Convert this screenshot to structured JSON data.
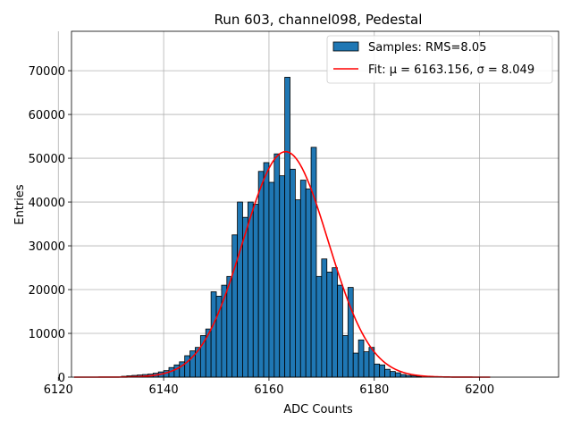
{
  "chart_data": {
    "type": "bar",
    "title": "Run 603, channel098, Pedestal",
    "xlabel": "ADC Counts",
    "ylabel": "Entries",
    "xlim": [
      6122.5,
      6215
    ],
    "ylim": [
      0,
      79000
    ],
    "xticks": [
      6120,
      6140,
      6160,
      6180,
      6200
    ],
    "yticks": [
      0,
      10000,
      20000,
      30000,
      40000,
      50000,
      60000,
      70000
    ],
    "grid": true,
    "legend_position": "top-right",
    "histogram": {
      "name": "Samples: RMS=8.05",
      "color": "#1f77b4",
      "bin_width": 1,
      "bins": [
        [
          6132,
          200
        ],
        [
          6133,
          300
        ],
        [
          6134,
          400
        ],
        [
          6135,
          500
        ],
        [
          6136,
          600
        ],
        [
          6137,
          700
        ],
        [
          6138,
          900
        ],
        [
          6139,
          1200
        ],
        [
          6140,
          1500
        ],
        [
          6141,
          2200
        ],
        [
          6142,
          2800
        ],
        [
          6143,
          3500
        ],
        [
          6144,
          4900
        ],
        [
          6145,
          6000
        ],
        [
          6146,
          6800
        ],
        [
          6147,
          9500
        ],
        [
          6148,
          11000
        ],
        [
          6149,
          19500
        ],
        [
          6150,
          18500
        ],
        [
          6151,
          21000
        ],
        [
          6152,
          23000
        ],
        [
          6153,
          32500
        ],
        [
          6154,
          40000
        ],
        [
          6155,
          36500
        ],
        [
          6156,
          40000
        ],
        [
          6157,
          39500
        ],
        [
          6158,
          47000
        ],
        [
          6159,
          49000
        ],
        [
          6160,
          44500
        ],
        [
          6161,
          51000
        ],
        [
          6162,
          46000
        ],
        [
          6163,
          68500
        ],
        [
          6164,
          47500
        ],
        [
          6165,
          40500
        ],
        [
          6166,
          45000
        ],
        [
          6167,
          43000
        ],
        [
          6168,
          52500
        ],
        [
          6169,
          23000
        ],
        [
          6170,
          27000
        ],
        [
          6171,
          24000
        ],
        [
          6172,
          25000
        ],
        [
          6173,
          21000
        ],
        [
          6174,
          9500
        ],
        [
          6175,
          20500
        ],
        [
          6176,
          5500
        ],
        [
          6177,
          8500
        ],
        [
          6178,
          5800
        ],
        [
          6179,
          6800
        ],
        [
          6180,
          3000
        ],
        [
          6181,
          2800
        ],
        [
          6182,
          1800
        ],
        [
          6183,
          1300
        ],
        [
          6184,
          1000
        ],
        [
          6185,
          600
        ],
        [
          6186,
          400
        ],
        [
          6187,
          300
        ],
        [
          6188,
          200
        ]
      ]
    },
    "fit": {
      "name": "Fit: μ = 6163.156, σ = 8.049",
      "mu_symbol": "μ",
      "sigma_symbol": "σ",
      "mu": 6163.156,
      "sigma": 8.049,
      "amplitude": 51500,
      "x_range": [
        6123,
        6202
      ],
      "color": "#ff0000"
    }
  }
}
